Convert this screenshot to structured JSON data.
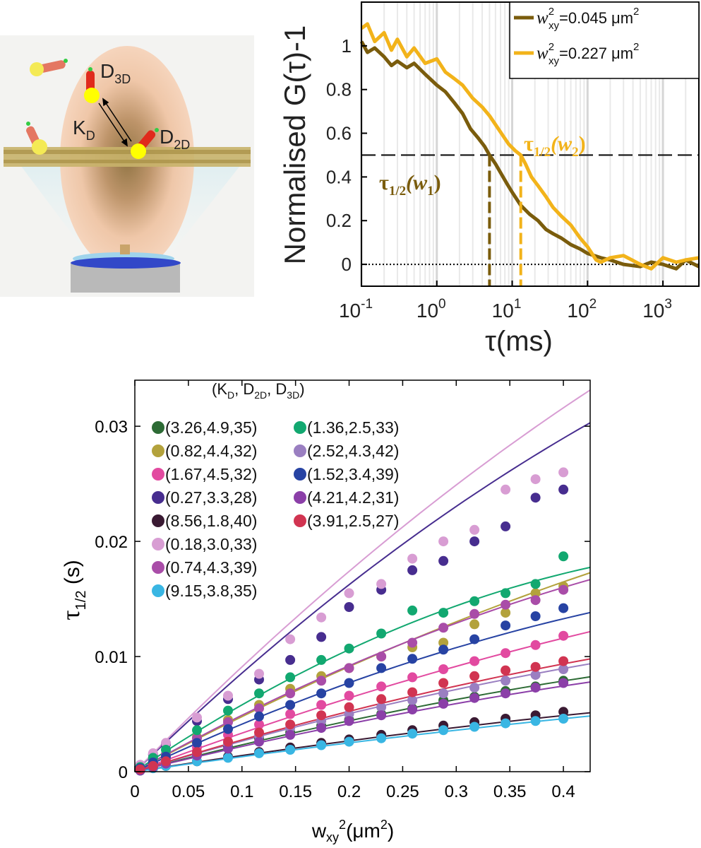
{
  "illustration": {
    "labels": {
      "d3d": "D",
      "d3d_sub": "3D",
      "kd": "K",
      "kd_sub": "D",
      "d2d": "D",
      "d2d_sub": "2D"
    }
  },
  "chart_data": [
    {
      "type": "line",
      "title": "",
      "xlabel": "τ(ms)",
      "ylabel": "Normalised G(τ)-1",
      "xscale": "log",
      "xlim": [
        0.1,
        3000
      ],
      "ylim": [
        -0.1,
        1.2
      ],
      "x_tick_labels": [
        {
          "base": "10",
          "exp": "-1",
          "value": 0.1
        },
        {
          "base": "10",
          "exp": "0",
          "value": 1
        },
        {
          "base": "10",
          "exp": "1",
          "value": 10
        },
        {
          "base": "10",
          "exp": "2",
          "value": 100
        },
        {
          "base": "10",
          "exp": "3",
          "value": 1000
        }
      ],
      "y_tick_labels": [
        "0",
        "0.2",
        "0.4",
        "0.6",
        "0.8",
        "1"
      ],
      "y_ticks": [
        0,
        0.2,
        0.4,
        0.6,
        0.8,
        1.0
      ],
      "legend_position": "top-right",
      "legend": [
        {
          "w": "w",
          "sup": "2",
          "sub": "xy",
          "text": "=0.045 μm",
          "unit_sup": "2",
          "color": "#7a5c0c"
        },
        {
          "w": "w",
          "sup": "2",
          "sub": "xy",
          "text": "=0.227 μm",
          "unit_sup": "2",
          "color": "#f2b31a"
        }
      ],
      "half_line": 0.5,
      "series": [
        {
          "name": "w_xy^2=0.045",
          "color": "#7a5c0c",
          "x": [
            0.1,
            0.12,
            0.15,
            0.2,
            0.25,
            0.3,
            0.4,
            0.5,
            0.7,
            1.0,
            1.3,
            1.7,
            2.2,
            2.8,
            3.5,
            4.3,
            5.0,
            6.0,
            7.0,
            8.5,
            10.0,
            13.0,
            17.0,
            22.0,
            28.0,
            35.0,
            45.0,
            60.0,
            80.0,
            100.0,
            150.0,
            200.0,
            300.0,
            500.0,
            700.0,
            1000.0,
            1500.0,
            2000.0,
            3000.0
          ],
          "y": [
            1.02,
            0.97,
            0.99,
            0.95,
            0.91,
            0.93,
            0.9,
            0.92,
            0.87,
            0.82,
            0.79,
            0.74,
            0.69,
            0.62,
            0.58,
            0.54,
            0.5,
            0.46,
            0.42,
            0.37,
            0.33,
            0.27,
            0.23,
            0.2,
            0.16,
            0.14,
            0.12,
            0.09,
            0.07,
            0.05,
            0.03,
            0.02,
            0.0,
            -0.01,
            0.01,
            0.0,
            -0.02,
            0.02,
            -0.01
          ]
        },
        {
          "name": "w_xy^2=0.227",
          "color": "#f2b31a",
          "x": [
            0.1,
            0.12,
            0.15,
            0.2,
            0.25,
            0.3,
            0.4,
            0.5,
            0.7,
            1.0,
            1.3,
            1.7,
            2.2,
            3.0,
            4.0,
            5.0,
            6.0,
            7.5,
            9.0,
            11.0,
            13.0,
            15.0,
            18.0,
            22.0,
            28.0,
            35.0,
            45.0,
            60.0,
            80.0,
            100.0,
            130.0,
            150.0,
            200.0,
            300.0,
            500.0,
            700.0,
            1000.0,
            1500.0,
            2000.0,
            3000.0
          ],
          "y": [
            1.08,
            1.1,
            1.02,
            1.06,
            0.98,
            1.03,
            0.95,
            0.99,
            0.92,
            0.94,
            0.88,
            0.85,
            0.82,
            0.76,
            0.72,
            0.68,
            0.64,
            0.59,
            0.55,
            0.52,
            0.5,
            0.46,
            0.4,
            0.36,
            0.31,
            0.26,
            0.22,
            0.18,
            0.12,
            0.08,
            0.02,
            0.01,
            0.03,
            0.04,
            0.0,
            -0.02,
            0.03,
            0.01,
            0.02,
            0.03
          ]
        }
      ],
      "vertical_markers": [
        {
          "x": 5.0,
          "color": "#7a5c0c"
        },
        {
          "x": 13.0,
          "color": "#f2b31a"
        }
      ],
      "annotations": [
        {
          "main": "τ",
          "sub": "1/2",
          "arg_open": "(w",
          "arg_sub": "1",
          "arg_close": ")",
          "color": "#7a5c0c"
        },
        {
          "main": "τ",
          "sub": "1/2",
          "arg_open": "(w",
          "arg_sub": "2",
          "arg_close": ")",
          "color": "#f2b31a"
        }
      ]
    },
    {
      "type": "scatter",
      "title": "",
      "xlabel_main": "w",
      "xlabel_sub": "xy",
      "xlabel_sup": "2",
      "xlabel_unit": "(μm",
      "xlabel_unit_sup": "2",
      "xlabel_close": ")",
      "ylabel_main": "τ",
      "ylabel_sub": "1/2",
      "ylabel_unit": " (s)",
      "xlim": [
        0,
        0.425
      ],
      "ylim": [
        0,
        0.034
      ],
      "x_ticks": [
        0,
        0.05,
        0.1,
        0.15,
        0.2,
        0.25,
        0.3,
        0.35,
        0.4
      ],
      "x_tick_labels": [
        "0",
        "0.05",
        "0.1",
        "0.15",
        "0.2",
        "0.25",
        "0.3",
        "0.35",
        "0.4"
      ],
      "y_ticks": [
        0,
        0.01,
        0.02,
        0.03
      ],
      "y_tick_labels": [
        "0",
        "0.01",
        "0.02",
        "0.03"
      ],
      "legend_header": {
        "open": "(K",
        "s1": "D",
        "mid1": ", D",
        "s2": "2D",
        "mid2": ", D",
        "s3": "3D",
        "close": ")"
      },
      "legend_position": "top-left",
      "x": [
        0.005,
        0.017,
        0.029,
        0.058,
        0.087,
        0.116,
        0.145,
        0.174,
        0.2,
        0.23,
        0.259,
        0.288,
        0.317,
        0.346,
        0.374,
        0.4
      ],
      "series": [
        {
          "label": "(3.26,4.9,35)",
          "color": "#2d6b35",
          "slope": 0.0245,
          "curv": 0.012,
          "values": [
            0.0001,
            0.0005,
            0.0008,
            0.0015,
            0.0022,
            0.0029,
            0.0034,
            0.004,
            0.0045,
            0.005,
            0.0055,
            0.0062,
            0.0065,
            0.007,
            0.0074,
            0.0079
          ]
        },
        {
          "label": "(0.82,4.4,32)",
          "color": "#b3a23c",
          "slope": 0.05,
          "curv": 0.022,
          "values": [
            0.0003,
            0.0009,
            0.0015,
            0.003,
            0.0045,
            0.0058,
            0.0072,
            0.0083,
            0.009,
            0.01,
            0.0108,
            0.0112,
            0.0128,
            0.0138,
            0.0155,
            0.0161
          ]
        },
        {
          "label": "(1.67,4.5,32)",
          "color": "#e24aa0",
          "slope": 0.035,
          "curv": 0.015,
          "values": [
            0.0002,
            0.0006,
            0.001,
            0.0021,
            0.0032,
            0.0041,
            0.005,
            0.0058,
            0.0066,
            0.0074,
            0.0082,
            0.0089,
            0.0096,
            0.0103,
            0.011,
            0.0118
          ]
        },
        {
          "label": "(0.27,3.3,28)",
          "color": "#472d8f",
          "slope": 0.09,
          "curv": 0.044,
          "values": [
            0.0005,
            0.0015,
            0.0024,
            0.0044,
            0.0063,
            0.008,
            0.0097,
            0.0117,
            0.0143,
            0.0158,
            0.0175,
            0.0183,
            0.02,
            0.0213,
            0.0238,
            0.0245
          ]
        },
        {
          "label": "(8.56,1.8,40)",
          "color": "#3a1a33",
          "slope": 0.0146,
          "curv": 0.006,
          "values": [
            0.0001,
            0.0003,
            0.0005,
            0.0009,
            0.0013,
            0.0017,
            0.0021,
            0.0025,
            0.0028,
            0.0032,
            0.0036,
            0.004,
            0.0043,
            0.0046,
            0.0049,
            0.0052
          ]
        },
        {
          "label": "(0.18,3.0,33)",
          "color": "#d89dd3",
          "slope": 0.095,
          "curv": 0.04,
          "values": [
            0.0006,
            0.0016,
            0.0025,
            0.0047,
            0.0066,
            0.0085,
            0.0115,
            0.0134,
            0.0155,
            0.0163,
            0.0185,
            0.02,
            0.021,
            0.0245,
            0.0254,
            0.026
          ]
        },
        {
          "label": "(0.74,4.3,39)",
          "color": "#a94da8",
          "slope": 0.052,
          "curv": 0.03,
          "values": [
            0.0003,
            0.0009,
            0.0015,
            0.0029,
            0.0043,
            0.0055,
            0.0068,
            0.0079,
            0.009,
            0.01,
            0.0112,
            0.0125,
            0.0137,
            0.0145,
            0.0149,
            0.0158
          ]
        },
        {
          "label": "(9.15,3.8,35)",
          "color": "#39b6e3",
          "slope": 0.0135,
          "curv": 0.005,
          "values": [
            0.0001,
            0.0003,
            0.0005,
            0.0009,
            0.0012,
            0.0016,
            0.0019,
            0.0023,
            0.0026,
            0.0029,
            0.0033,
            0.0036,
            0.0039,
            0.0042,
            0.0044,
            0.0046
          ]
        },
        {
          "label": "(1.36,2.5,33)",
          "color": "#12a870",
          "slope": 0.063,
          "curv": 0.05,
          "values": [
            0.0004,
            0.0012,
            0.0019,
            0.0036,
            0.0053,
            0.0068,
            0.0082,
            0.0097,
            0.0107,
            0.012,
            0.014,
            0.0138,
            0.0148,
            0.0155,
            0.0163,
            0.0187
          ]
        },
        {
          "label": "(2.52,4.3,42)",
          "color": "#9a7fc1",
          "slope": 0.028,
          "curv": 0.014,
          "values": [
            0.0002,
            0.0005,
            0.0008,
            0.0016,
            0.0024,
            0.0031,
            0.0038,
            0.0044,
            0.005,
            0.0056,
            0.0062,
            0.0068,
            0.0073,
            0.0079,
            0.0084,
            0.0089
          ]
        },
        {
          "label": "(1.52,3.4,39)",
          "color": "#2743a3",
          "slope": 0.044,
          "curv": 0.027,
          "values": [
            0.0003,
            0.0008,
            0.0013,
            0.0025,
            0.0037,
            0.0048,
            0.0058,
            0.0068,
            0.0077,
            0.009,
            0.0098,
            0.0106,
            0.0115,
            0.0127,
            0.0135,
            0.0142
          ]
        },
        {
          "label": "(4.21,4.2,31)",
          "color": "#8b3fa8",
          "slope": 0.023,
          "curv": 0.011,
          "values": [
            0.0001,
            0.0004,
            0.0007,
            0.0014,
            0.002,
            0.0026,
            0.0032,
            0.0038,
            0.0044,
            0.0049,
            0.0054,
            0.0059,
            0.0064,
            0.0068,
            0.0073,
            0.0077
          ]
        },
        {
          "label": "(3.91,2.5,27)",
          "color": "#d13451",
          "slope": 0.029,
          "curv": 0.014,
          "values": [
            0.0002,
            0.0005,
            0.0009,
            0.0017,
            0.0026,
            0.0034,
            0.0041,
            0.0049,
            0.0056,
            0.0063,
            0.0069,
            0.0077,
            0.0083,
            0.0088,
            0.0091,
            0.0096
          ]
        }
      ]
    }
  ]
}
